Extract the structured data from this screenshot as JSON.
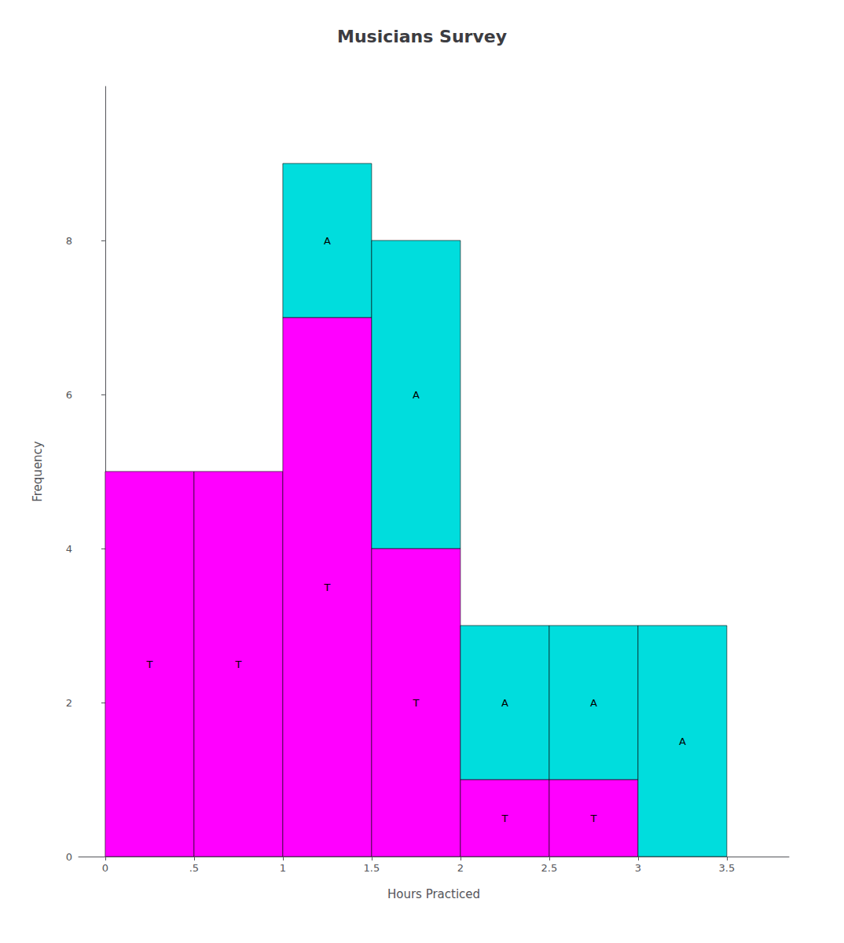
{
  "chart_data": {
    "type": "histogram",
    "title": "Musicians Survey",
    "x_label": "Hours Practiced",
    "y_label": "Frequency",
    "bins": [
      0,
      0.5,
      1.0,
      1.5,
      2.0,
      2.5,
      3.0,
      3.5
    ],
    "stacked": true,
    "series": [
      {
        "name": "T",
        "color": "#FF00FF",
        "values": [
          5,
          5,
          7,
          4,
          1,
          1,
          0
        ]
      },
      {
        "name": "A",
        "color": "#00DDDD",
        "values": [
          0,
          0,
          2,
          4,
          2,
          2,
          3
        ]
      }
    ],
    "xlim": [
      -0.15,
      3.85
    ],
    "xticks": [
      0,
      {
        "value": 0.5,
        "label": ".5"
      },
      1,
      1.5,
      2,
      2.5,
      3,
      3.5
    ],
    "ylim": [
      0,
      10
    ],
    "yticks": [
      0,
      2,
      4,
      6,
      8
    ],
    "grid": false
  }
}
